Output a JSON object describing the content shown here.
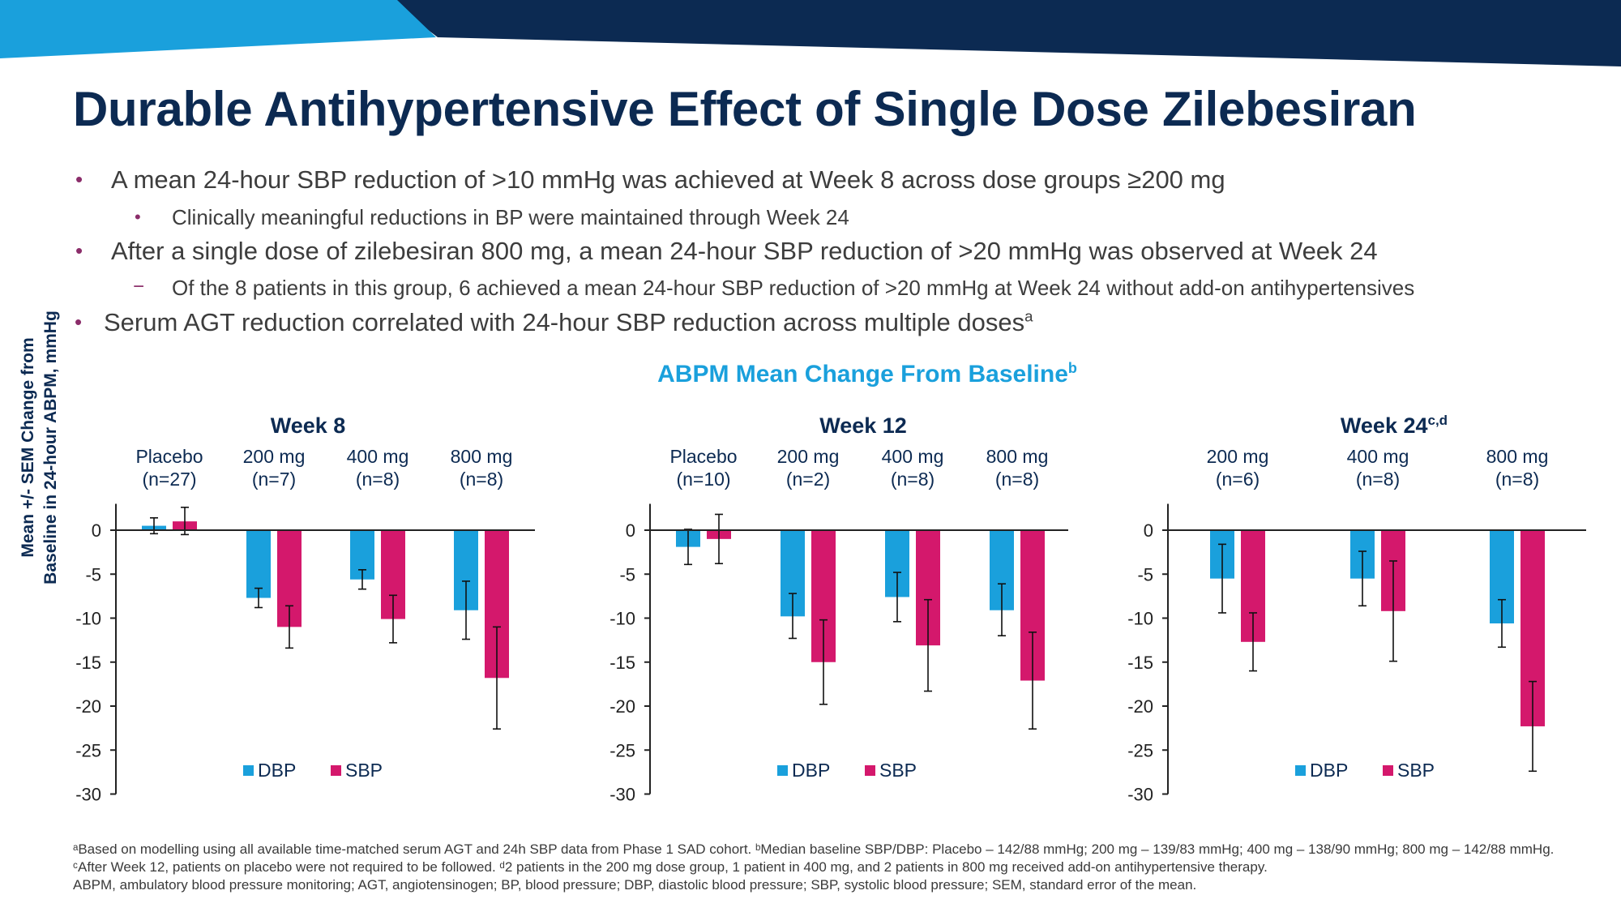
{
  "header": {
    "title": "Durable Antihypertensive Effect of Single Dose Zilebesiran",
    "banner_colors": {
      "left": "#1aa0dc",
      "right": "#0c2a52"
    }
  },
  "bullets": [
    {
      "level": 1,
      "marker": "•",
      "text": "A mean 24-hour SBP reduction of >10 mmHg was achieved at Week 8 across dose groups ≥200 mg"
    },
    {
      "level": 2,
      "marker": "•",
      "text": "Clinically meaningful reductions in BP were maintained through Week 24"
    },
    {
      "level": 1,
      "marker": "•",
      "text": "After a single dose of zilebesiran 800 mg, a mean 24-hour SBP reduction of >20 mmHg was observed at Week 24"
    },
    {
      "level": 2,
      "marker": "−",
      "text": "Of the 8 patients in this group, 6 achieved a mean 24-hour SBP reduction of >20 mmHg at Week 24 without add-on antihypertensives"
    },
    {
      "level": 1,
      "marker": "•",
      "text": "Serum AGT reduction correlated with 24-hour SBP reduction across multiple doses",
      "sup": "a"
    }
  ],
  "figure": {
    "title": "ABPM Mean Change From Baseline",
    "title_sup": "b",
    "y_axis_label_line1": "Mean +/- SEM Change from",
    "y_axis_label_line2": "Baseline in 24-hour ABPM, mmHg"
  },
  "chart_data": [
    {
      "type": "bar",
      "title": "Week 8",
      "title_sup": "",
      "categories": [
        "Placebo",
        "200 mg",
        "400 mg",
        "800 mg"
      ],
      "category_n": [
        "(n=27)",
        "(n=7)",
        "(n=8)",
        "(n=8)"
      ],
      "series": [
        {
          "name": "DBP",
          "color": "#1aa0dc",
          "values": [
            0.5,
            -7.7,
            -5.6,
            -9.1
          ],
          "err_low": [
            -0.4,
            -8.8,
            -6.7,
            -12.4
          ],
          "err_high": [
            1.4,
            -6.6,
            -4.5,
            -5.8
          ]
        },
        {
          "name": "SBP",
          "color": "#d4186c",
          "values": [
            1.0,
            -11.0,
            -10.1,
            -16.8
          ],
          "err_low": [
            -0.5,
            -13.4,
            -12.8,
            -22.6
          ],
          "err_high": [
            2.6,
            -8.6,
            -7.4,
            -11.0
          ]
        }
      ],
      "yticks": [
        0,
        -5,
        -10,
        -15,
        -20,
        -25,
        -30
      ],
      "ylim": [
        -30,
        3
      ],
      "legend_placement": "bottom"
    },
    {
      "type": "bar",
      "title": "Week 12",
      "title_sup": "",
      "categories": [
        "Placebo",
        "200 mg",
        "400 mg",
        "800 mg"
      ],
      "category_n": [
        "(n=10)",
        "(n=2)",
        "(n=8)",
        "(n=8)"
      ],
      "series": [
        {
          "name": "DBP",
          "color": "#1aa0dc",
          "values": [
            -1.9,
            -9.8,
            -7.6,
            -9.1
          ],
          "err_low": [
            -3.9,
            -12.3,
            -10.4,
            -12.0
          ],
          "err_high": [
            0.1,
            -7.2,
            -4.8,
            -6.1
          ]
        },
        {
          "name": "SBP",
          "color": "#d4186c",
          "values": [
            -1.0,
            -15.0,
            -13.1,
            -17.1
          ],
          "err_low": [
            -3.8,
            -19.8,
            -18.3,
            -22.6
          ],
          "err_high": [
            1.8,
            -10.2,
            -7.9,
            -11.6
          ]
        }
      ],
      "yticks": [
        0,
        -5,
        -10,
        -15,
        -20,
        -25,
        -30
      ],
      "ylim": [
        -30,
        3
      ],
      "legend_placement": "bottom"
    },
    {
      "type": "bar",
      "title": "Week 24",
      "title_sup": "c,d",
      "categories": [
        "200 mg",
        "400 mg",
        "800 mg"
      ],
      "category_n": [
        "(n=6)",
        "(n=8)",
        "(n=8)"
      ],
      "series": [
        {
          "name": "DBP",
          "color": "#1aa0dc",
          "values": [
            -5.5,
            -5.5,
            -10.6
          ],
          "err_low": [
            -9.4,
            -8.6,
            -13.3
          ],
          "err_high": [
            -1.6,
            -2.4,
            -7.9
          ]
        },
        {
          "name": "SBP",
          "color": "#d4186c",
          "values": [
            -12.7,
            -9.2,
            -22.3
          ],
          "err_low": [
            -16.0,
            -14.9,
            -27.4
          ],
          "err_high": [
            -9.4,
            -3.5,
            -17.2
          ]
        }
      ],
      "yticks": [
        0,
        -5,
        -10,
        -15,
        -20,
        -25,
        -30
      ],
      "ylim": [
        -30,
        3
      ],
      "legend_placement": "bottom"
    }
  ],
  "footnote": {
    "line1": "ᵃBased on modelling using all available time-matched serum AGT and 24h SBP data from Phase 1 SAD cohort. ᵇMedian baseline SBP/DBP: Placebo – 142/88 mmHg; 200 mg – 139/83 mmHg; 400 mg – 138/90 mmHg; 800 mg – 142/88 mmHg. ᶜAfter Week 12, patients on placebo were not required to be followed. ᵈ2 patients in the 200 mg dose group, 1 patient in 400 mg, and 2 patients in 800 mg received add-on antihypertensive therapy.",
    "line2": "ABPM, ambulatory blood pressure monitoring; AGT, angiotensinogen; BP, blood pressure; DBP, diastolic blood pressure; SBP, systolic blood pressure; SEM, standard error of the mean."
  }
}
